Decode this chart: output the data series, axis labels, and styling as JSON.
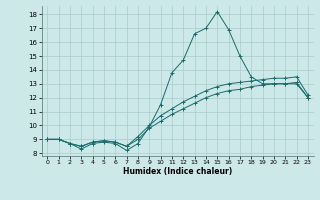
{
  "xlabel": "Humidex (Indice chaleur)",
  "ylabel": "",
  "background_color": "#cce8e8",
  "grid_color": "#aacccc",
  "line_color": "#1a6b6b",
  "xlim": [
    -0.5,
    23.5
  ],
  "ylim": [
    7.8,
    18.6
  ],
  "yticks": [
    8,
    9,
    10,
    11,
    12,
    13,
    14,
    15,
    16,
    17,
    18
  ],
  "xticks": [
    0,
    1,
    2,
    3,
    4,
    5,
    6,
    7,
    8,
    9,
    10,
    11,
    12,
    13,
    14,
    15,
    16,
    17,
    18,
    19,
    20,
    21,
    22,
    23
  ],
  "series": [
    {
      "x": [
        0,
        1,
        2,
        3,
        4,
        5,
        6,
        7,
        8,
        9,
        10,
        11,
        12,
        13,
        14,
        15,
        16,
        17,
        18,
        19,
        20,
        21,
        22,
        23
      ],
      "y": [
        9.0,
        9.0,
        8.7,
        8.3,
        8.7,
        8.8,
        8.7,
        8.2,
        8.7,
        9.9,
        11.5,
        13.8,
        14.7,
        16.6,
        17.0,
        18.2,
        16.9,
        15.0,
        13.5,
        13.0,
        13.0,
        13.0,
        13.0,
        12.0
      ]
    },
    {
      "x": [
        0,
        1,
        2,
        3,
        4,
        5,
        6,
        7,
        8,
        9,
        10,
        11,
        12,
        13,
        14,
        15,
        16,
        17,
        18,
        19,
        20,
        21,
        22,
        23
      ],
      "y": [
        9.0,
        9.0,
        8.7,
        8.5,
        8.8,
        8.9,
        8.8,
        8.5,
        9.2,
        10.0,
        10.7,
        11.2,
        11.7,
        12.1,
        12.5,
        12.8,
        13.0,
        13.1,
        13.2,
        13.3,
        13.4,
        13.4,
        13.5,
        12.2
      ]
    },
    {
      "x": [
        0,
        1,
        2,
        3,
        4,
        5,
        6,
        7,
        8,
        9,
        10,
        11,
        12,
        13,
        14,
        15,
        16,
        17,
        18,
        19,
        20,
        21,
        22,
        23
      ],
      "y": [
        9.0,
        9.0,
        8.7,
        8.5,
        8.8,
        8.9,
        8.8,
        8.5,
        9.0,
        9.8,
        10.3,
        10.8,
        11.2,
        11.6,
        12.0,
        12.3,
        12.5,
        12.6,
        12.8,
        12.9,
        13.0,
        13.0,
        13.1,
        12.0
      ]
    }
  ]
}
